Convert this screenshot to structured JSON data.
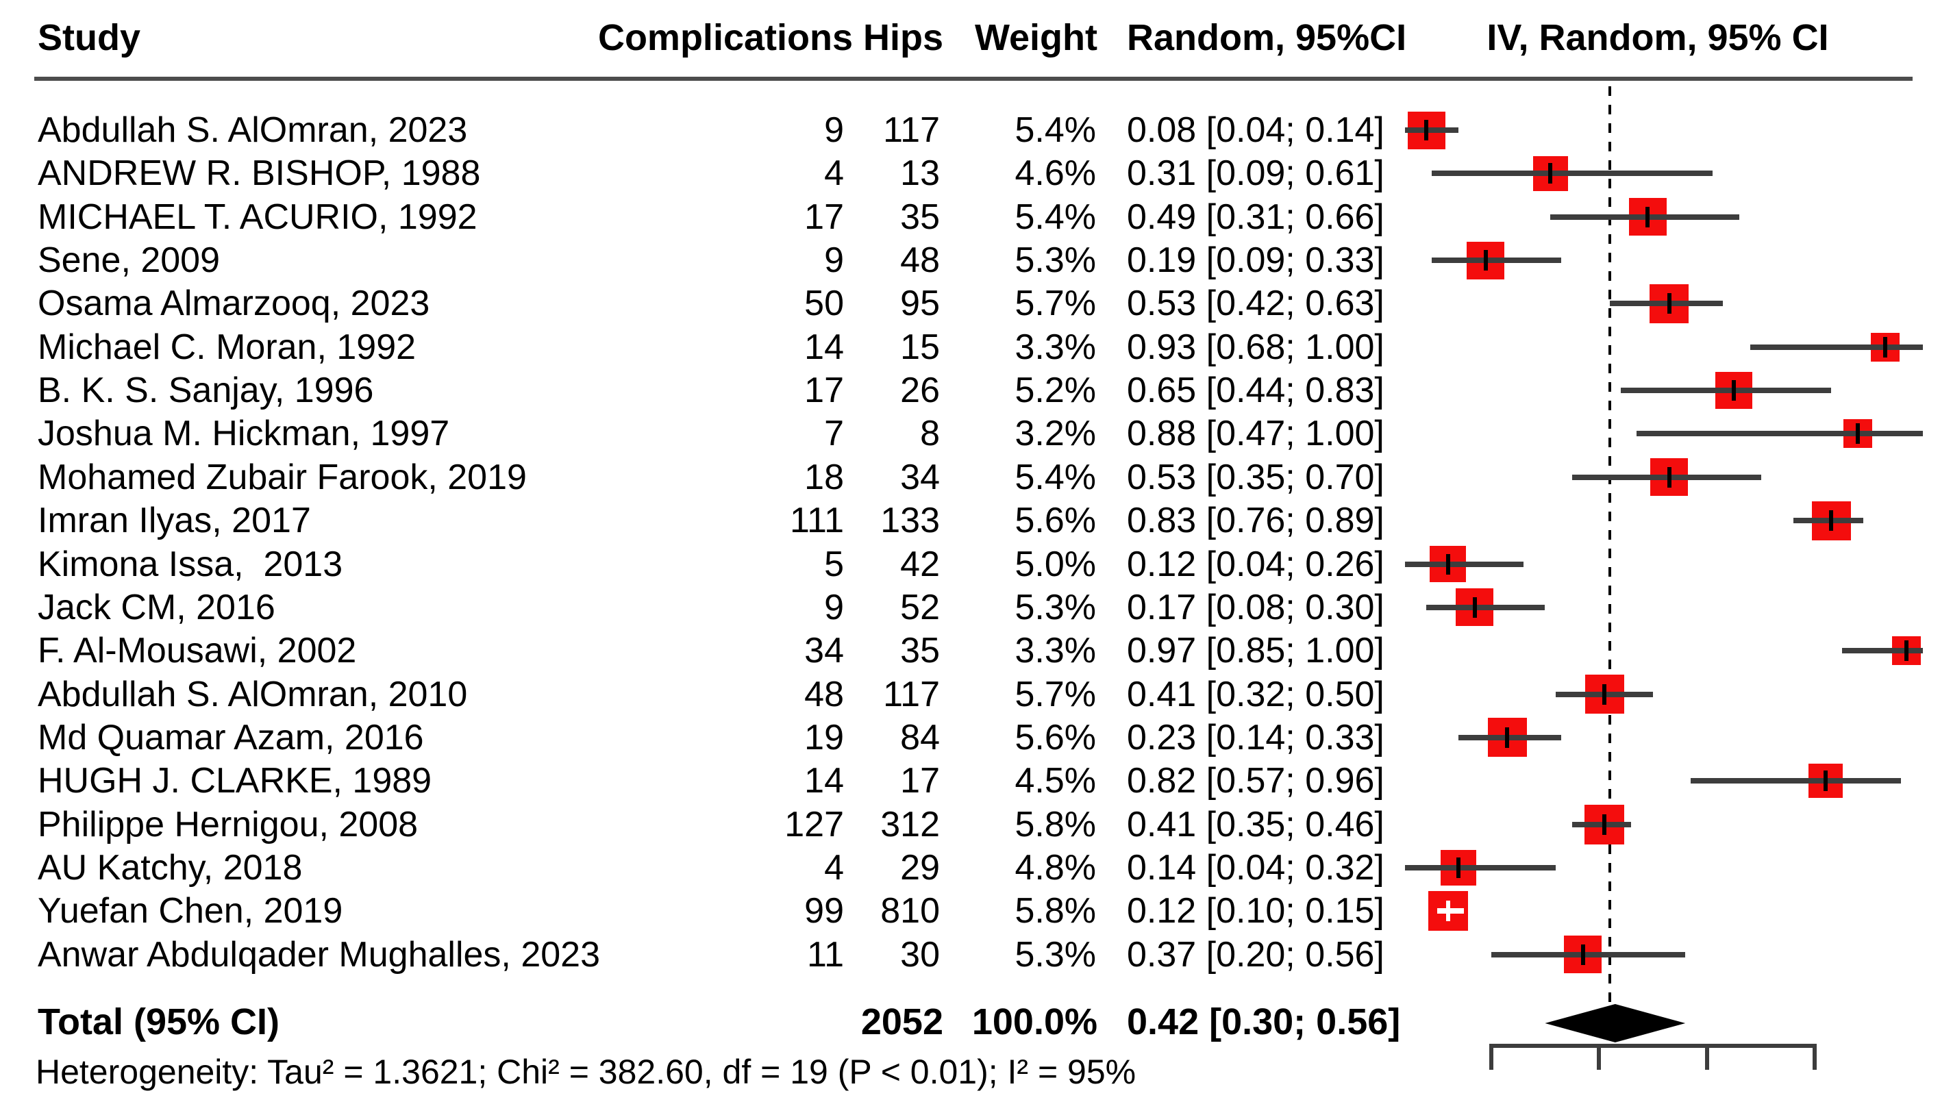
{
  "colors": {
    "marker": "#f40d0d",
    "whisker": "#3d3d3d",
    "marker_tick": "#000000",
    "marker_tick_inside": "#ffffff",
    "diamond": "#000000",
    "axis": "#3d3d3d",
    "reference_line": "#000000",
    "header_rule": "#4d4d4d",
    "text": "#000000",
    "background": "#ffffff"
  },
  "chart_data": {
    "type": "forest",
    "title": "",
    "xlabel": "",
    "ylabel": "",
    "columns": {
      "study": "Study",
      "complications": "Complications",
      "hips": "Hips",
      "weight": "Weight",
      "ci_text": "Random, 95%CI",
      "plot": "IV, Random, 95% CI"
    },
    "studies": [
      {
        "study": "Abdullah S. AlOmran, 2023",
        "complications": 9,
        "hips": 117,
        "weight": "5.4%",
        "weight_value": 5.4,
        "estimate": 0.08,
        "ci_lower": 0.04,
        "ci_upper": 0.14,
        "ci_text": "0.08 [0.04; 0.14]"
      },
      {
        "study": "ANDREW R. BISHOP, 1988",
        "complications": 4,
        "hips": 13,
        "weight": "4.6%",
        "weight_value": 4.6,
        "estimate": 0.31,
        "ci_lower": 0.09,
        "ci_upper": 0.61,
        "ci_text": "0.31 [0.09; 0.61]"
      },
      {
        "study": "MICHAEL T. ACURIO, 1992",
        "complications": 17,
        "hips": 35,
        "weight": "5.4%",
        "weight_value": 5.4,
        "estimate": 0.49,
        "ci_lower": 0.31,
        "ci_upper": 0.66,
        "ci_text": "0.49 [0.31; 0.66]"
      },
      {
        "study": "Sene, 2009",
        "complications": 9,
        "hips": 48,
        "weight": "5.3%",
        "weight_value": 5.3,
        "estimate": 0.19,
        "ci_lower": 0.09,
        "ci_upper": 0.33,
        "ci_text": "0.19 [0.09; 0.33]"
      },
      {
        "study": "Osama Almarzooq, 2023",
        "complications": 50,
        "hips": 95,
        "weight": "5.7%",
        "weight_value": 5.7,
        "estimate": 0.53,
        "ci_lower": 0.42,
        "ci_upper": 0.63,
        "ci_text": "0.53 [0.42; 0.63]"
      },
      {
        "study": "Michael C. Moran, 1992",
        "complications": 14,
        "hips": 15,
        "weight": "3.3%",
        "weight_value": 3.3,
        "estimate": 0.93,
        "ci_lower": 0.68,
        "ci_upper": 1.0,
        "ci_text": "0.93 [0.68; 1.00]"
      },
      {
        "study": "B. K. S. Sanjay, 1996",
        "complications": 17,
        "hips": 26,
        "weight": "5.2%",
        "weight_value": 5.2,
        "estimate": 0.65,
        "ci_lower": 0.44,
        "ci_upper": 0.83,
        "ci_text": "0.65 [0.44; 0.83]"
      },
      {
        "study": "Joshua M. Hickman, 1997",
        "complications": 7,
        "hips": 8,
        "weight": "3.2%",
        "weight_value": 3.2,
        "estimate": 0.88,
        "ci_lower": 0.47,
        "ci_upper": 1.0,
        "ci_text": "0.88 [0.47; 1.00]"
      },
      {
        "study": "Mohamed Zubair Farook, 2019",
        "complications": 18,
        "hips": 34,
        "weight": "5.4%",
        "weight_value": 5.4,
        "estimate": 0.53,
        "ci_lower": 0.35,
        "ci_upper": 0.7,
        "ci_text": "0.53 [0.35; 0.70]"
      },
      {
        "study": "Imran Ilyas, 2017",
        "complications": 111,
        "hips": 133,
        "weight": "5.6%",
        "weight_value": 5.6,
        "estimate": 0.83,
        "ci_lower": 0.76,
        "ci_upper": 0.89,
        "ci_text": "0.83 [0.76; 0.89]"
      },
      {
        "study": "Kimona Issa,  2013",
        "complications": 5,
        "hips": 42,
        "weight": "5.0%",
        "weight_value": 5.0,
        "estimate": 0.12,
        "ci_lower": 0.04,
        "ci_upper": 0.26,
        "ci_text": "0.12 [0.04; 0.26]"
      },
      {
        "study": "Jack CM, 2016",
        "complications": 9,
        "hips": 52,
        "weight": "5.3%",
        "weight_value": 5.3,
        "estimate": 0.17,
        "ci_lower": 0.08,
        "ci_upper": 0.3,
        "ci_text": "0.17 [0.08; 0.30]"
      },
      {
        "study": "F. Al-Mousawi, 2002",
        "complications": 34,
        "hips": 35,
        "weight": "3.3%",
        "weight_value": 3.3,
        "estimate": 0.97,
        "ci_lower": 0.85,
        "ci_upper": 1.0,
        "ci_text": "0.97 [0.85; 1.00]"
      },
      {
        "study": "Abdullah S. AlOmran, 2010",
        "complications": 48,
        "hips": 117,
        "weight": "5.7%",
        "weight_value": 5.7,
        "estimate": 0.41,
        "ci_lower": 0.32,
        "ci_upper": 0.5,
        "ci_text": "0.41 [0.32; 0.50]"
      },
      {
        "study": "Md Quamar Azam, 2016",
        "complications": 19,
        "hips": 84,
        "weight": "5.6%",
        "weight_value": 5.6,
        "estimate": 0.23,
        "ci_lower": 0.14,
        "ci_upper": 0.33,
        "ci_text": "0.23 [0.14; 0.33]"
      },
      {
        "study": "HUGH J. CLARKE, 1989",
        "complications": 14,
        "hips": 17,
        "weight": "4.5%",
        "weight_value": 4.5,
        "estimate": 0.82,
        "ci_lower": 0.57,
        "ci_upper": 0.96,
        "ci_text": "0.82 [0.57; 0.96]"
      },
      {
        "study": "Philippe Hernigou, 2008",
        "complications": 127,
        "hips": 312,
        "weight": "5.8%",
        "weight_value": 5.8,
        "estimate": 0.41,
        "ci_lower": 0.35,
        "ci_upper": 0.46,
        "ci_text": "0.41 [0.35; 0.46]"
      },
      {
        "study": "AU Katchy, 2018",
        "complications": 4,
        "hips": 29,
        "weight": "4.8%",
        "weight_value": 4.8,
        "estimate": 0.14,
        "ci_lower": 0.04,
        "ci_upper": 0.32,
        "ci_text": "0.14 [0.04; 0.32]"
      },
      {
        "study": "Yuefan Chen, 2019",
        "complications": 99,
        "hips": 810,
        "weight": "5.8%",
        "weight_value": 5.8,
        "estimate": 0.12,
        "ci_lower": 0.1,
        "ci_upper": 0.15,
        "ci_text": "0.12 [0.10; 0.15]"
      },
      {
        "study": "Anwar Abdulqader Mughalles, 2023",
        "complications": 11,
        "hips": 30,
        "weight": "5.3%",
        "weight_value": 5.3,
        "estimate": 0.37,
        "ci_lower": 0.2,
        "ci_upper": 0.56,
        "ci_text": "0.37 [0.20; 0.56]"
      }
    ],
    "total": {
      "label": "Total (95% CI)",
      "hips": 2052,
      "weight": "100.0%",
      "estimate": 0.42,
      "ci_lower": 0.3,
      "ci_upper": 0.56,
      "ci_text": "0.42 [0.30; 0.56]"
    },
    "heterogeneity_note": "Heterogeneity: Tau² = 1.3621; Chi² = 382.60, df = 19 (P < 0.01); I² = 95%",
    "axis": {
      "range": [
        0,
        1.03
      ],
      "ticks": [
        0.2,
        0.4,
        0.6,
        0.8
      ],
      "tick_labels_visible": false,
      "reference_line": 0.42,
      "grid": false
    },
    "legend_position": "none"
  }
}
